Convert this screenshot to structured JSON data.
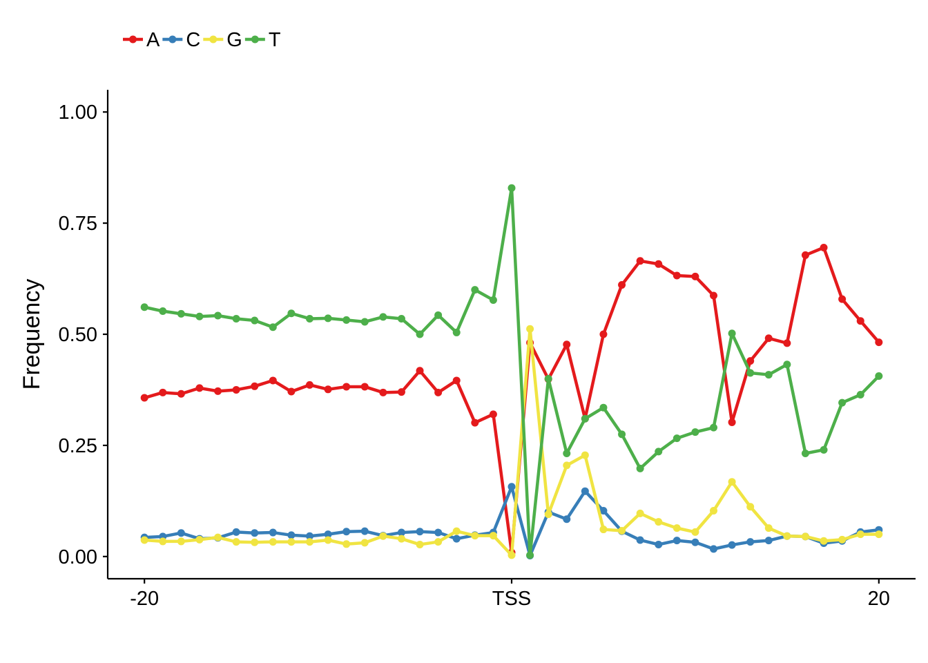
{
  "chart_data": {
    "type": "line",
    "xlabel": "",
    "ylabel": "Frequency",
    "x": [
      -20,
      -19,
      -18,
      -17,
      -16,
      -15,
      -14,
      -13,
      -12,
      -11,
      -10,
      -9,
      -8,
      -7,
      -6,
      -5,
      -4,
      -3,
      -2,
      -1,
      0,
      1,
      2,
      3,
      4,
      5,
      6,
      7,
      8,
      9,
      10,
      11,
      12,
      13,
      14,
      15,
      16,
      17,
      18,
      19,
      20
    ],
    "xlim": [
      -22,
      22
    ],
    "ylim": [
      -0.05,
      1.05
    ],
    "x_ticks": [
      {
        "value": -20,
        "label": "-20"
      },
      {
        "value": 0,
        "label": "TSS"
      },
      {
        "value": 20,
        "label": "20"
      }
    ],
    "y_ticks": [
      {
        "value": 0,
        "label": "0.00"
      },
      {
        "value": 0.25,
        "label": "0.25"
      },
      {
        "value": 0.5,
        "label": "0.50"
      },
      {
        "value": 0.75,
        "label": "0.75"
      },
      {
        "value": 1,
        "label": "1.00"
      }
    ],
    "grid": false,
    "legend_position": "top-left",
    "series": [
      {
        "name": "A",
        "color": "#e41a1c",
        "values": [
          0.357,
          0.369,
          0.366,
          0.379,
          0.372,
          0.375,
          0.383,
          0.396,
          0.371,
          0.386,
          0.376,
          0.382,
          0.382,
          0.369,
          0.37,
          0.418,
          0.369,
          0.396,
          0.301,
          0.32,
          0.009,
          0.481,
          0.399,
          0.477,
          0.31,
          0.5,
          0.611,
          0.665,
          0.658,
          0.632,
          0.63,
          0.587,
          0.302,
          0.44,
          0.491,
          0.48,
          0.678,
          0.695,
          0.579,
          0.53,
          0.482
        ]
      },
      {
        "name": "C",
        "color": "#377eb8",
        "values": [
          0.043,
          0.045,
          0.053,
          0.04,
          0.042,
          0.055,
          0.053,
          0.054,
          0.048,
          0.046,
          0.05,
          0.056,
          0.057,
          0.047,
          0.054,
          0.056,
          0.054,
          0.04,
          0.048,
          0.054,
          0.157,
          0.002,
          0.1,
          0.084,
          0.147,
          0.103,
          0.057,
          0.037,
          0.027,
          0.036,
          0.032,
          0.017,
          0.026,
          0.033,
          0.036,
          0.046,
          0.045,
          0.03,
          0.035,
          0.055,
          0.06
        ]
      },
      {
        "name": "G",
        "color": "#f0e442",
        "values": [
          0.037,
          0.034,
          0.034,
          0.038,
          0.043,
          0.033,
          0.032,
          0.033,
          0.033,
          0.033,
          0.037,
          0.028,
          0.031,
          0.046,
          0.04,
          0.027,
          0.033,
          0.057,
          0.047,
          0.047,
          0.003,
          0.512,
          0.095,
          0.205,
          0.228,
          0.061,
          0.058,
          0.097,
          0.078,
          0.064,
          0.055,
          0.103,
          0.168,
          0.112,
          0.064,
          0.046,
          0.045,
          0.035,
          0.038,
          0.05,
          0.05
        ]
      },
      {
        "name": "T",
        "color": "#4daf4a",
        "values": [
          0.561,
          0.552,
          0.546,
          0.54,
          0.542,
          0.535,
          0.531,
          0.516,
          0.547,
          0.535,
          0.536,
          0.532,
          0.528,
          0.539,
          0.535,
          0.5,
          0.543,
          0.504,
          0.6,
          0.577,
          0.829,
          0.003,
          0.4,
          0.232,
          0.31,
          0.335,
          0.275,
          0.198,
          0.236,
          0.266,
          0.28,
          0.29,
          0.502,
          0.413,
          0.409,
          0.432,
          0.232,
          0.24,
          0.346,
          0.364,
          0.406
        ]
      }
    ]
  }
}
